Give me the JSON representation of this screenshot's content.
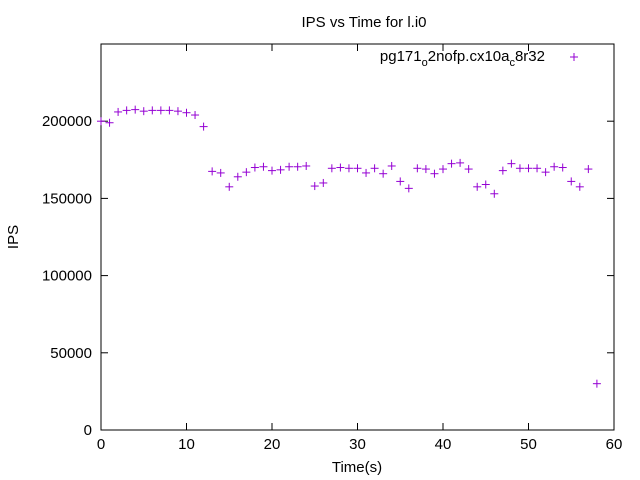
{
  "chart_data": {
    "type": "scatter",
    "title": "IPS vs Time for l.i0",
    "xlabel": "Time(s)",
    "ylabel": "IPS",
    "xlim": [
      0,
      60
    ],
    "ylim": [
      0,
      250000
    ],
    "xticks": [
      0,
      10,
      20,
      30,
      40,
      50,
      60
    ],
    "yticks": [
      0,
      50000,
      100000,
      150000,
      200000
    ],
    "grid": false,
    "legend_position": "top-right",
    "series": [
      {
        "name": "pg171_o2nofp.cx10a_c8r32",
        "legend_text": {
          "a": "pg171",
          "b": "o",
          "c": "2nofp.cx10a",
          "d": "c",
          "e": "8r32"
        },
        "color": "#9400d3",
        "marker": "plus",
        "x": [
          0,
          1,
          2,
          3,
          4,
          5,
          6,
          7,
          8,
          9,
          10,
          11,
          12,
          13,
          14,
          15,
          16,
          17,
          18,
          19,
          20,
          21,
          22,
          23,
          24,
          25,
          26,
          27,
          28,
          29,
          30,
          31,
          32,
          33,
          34,
          35,
          36,
          37,
          38,
          39,
          40,
          41,
          42,
          43,
          44,
          45,
          46,
          47,
          48,
          49,
          50,
          51,
          52,
          53,
          54,
          55,
          56,
          57,
          58
        ],
        "y": [
          200000,
          199000,
          206000,
          207000,
          207500,
          206500,
          207000,
          207000,
          207000,
          206500,
          205500,
          204000,
          196500,
          167500,
          166500,
          157500,
          164000,
          167000,
          170000,
          170500,
          168000,
          168500,
          170500,
          170500,
          171000,
          158000,
          160000,
          169500,
          170000,
          169500,
          169500,
          166500,
          169500,
          166000,
          171000,
          161000,
          156500,
          169500,
          169000,
          166000,
          169000,
          172500,
          173000,
          169000,
          157500,
          159000,
          153000,
          168000,
          172500,
          169500,
          169500,
          169500,
          167000,
          170500,
          170000,
          161000,
          157500,
          169000,
          30000
        ]
      }
    ]
  }
}
